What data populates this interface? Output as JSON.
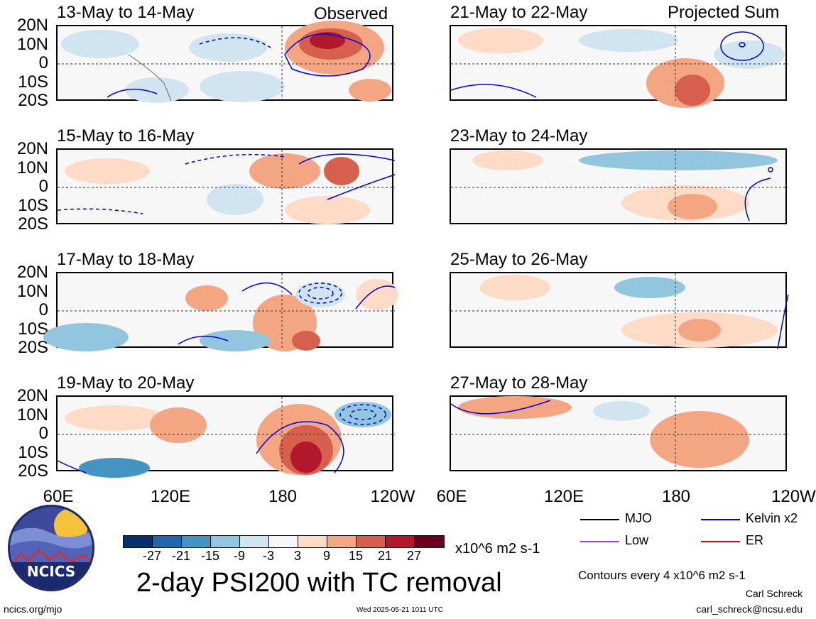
{
  "panels": [
    {
      "title": "13-May to 14-May",
      "label": "Observed"
    },
    {
      "title": "15-May to 16-May",
      "label": ""
    },
    {
      "title": "17-May to 18-May",
      "label": ""
    },
    {
      "title": "19-May to 20-May",
      "label": ""
    },
    {
      "title": "21-May to 22-May",
      "label": "Projected Sum"
    },
    {
      "title": "23-May to 24-May",
      "label": ""
    },
    {
      "title": "25-May to 26-May",
      "label": ""
    },
    {
      "title": "27-May to 28-May",
      "label": ""
    }
  ],
  "lat_labels": [
    "20N",
    "10N",
    "0",
    "10S",
    "20S"
  ],
  "lon_labels": [
    "60E",
    "120E",
    "180",
    "120W"
  ],
  "lon_labels_right": [
    "60E",
    "120E",
    "180",
    "120W"
  ],
  "colorbar": {
    "colors": [
      "#08306b",
      "#2166ac",
      "#4393c3",
      "#92c5de",
      "#d1e5f0",
      "#f7f7f7",
      "#fddbc7",
      "#f4a582",
      "#d6604d",
      "#b2182b",
      "#67001f"
    ],
    "ticks": [
      "-27",
      "-21",
      "-15",
      "-9",
      "-3",
      "3",
      "9",
      "15",
      "21",
      "27"
    ],
    "units": "x10^6 m2 s-1"
  },
  "title": "2-day PSI200 with TC removal",
  "logo": {
    "text": "NCICS"
  },
  "legend": {
    "items": [
      {
        "label": "MJO",
        "color": "#000000"
      },
      {
        "label": "Kelvin x2",
        "color": "#0000dd"
      },
      {
        "label": "Low",
        "color": "#a040e0"
      },
      {
        "label": "ER",
        "color": "#ee0000"
      }
    ],
    "contours": "Contours every 4 x10^6 m2 s-1"
  },
  "footer": {
    "url": "ncics.org/mjo",
    "timestamp": "Wed 2025-05-21 1011 UTC",
    "author": "Carl Schreck",
    "email": "carl_schreck@ncsu.edu"
  }
}
